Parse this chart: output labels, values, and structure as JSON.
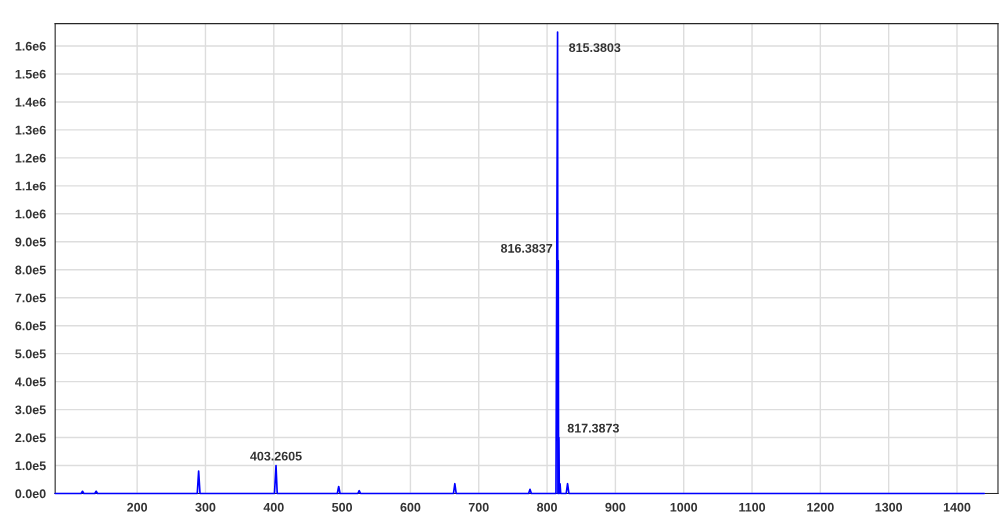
{
  "chart_data": {
    "type": "line",
    "x": [
      80,
      118,
      120,
      122,
      138,
      140,
      142,
      288,
      290,
      292,
      401,
      403.2605,
      405,
      493,
      495,
      497,
      523,
      525,
      527,
      663,
      665,
      667,
      773,
      775,
      777,
      813,
      815.3803,
      815.88,
      816.3837,
      816.88,
      817.3873,
      817.9,
      819,
      820,
      828,
      830,
      832,
      1440
    ],
    "series": [
      {
        "color": "#0000ff",
        "values": [
          0,
          0,
          8000,
          0,
          0,
          8000,
          0,
          0,
          80000,
          0,
          0,
          100000,
          0,
          0,
          25000,
          0,
          0,
          10000,
          0,
          0,
          35000,
          0,
          0,
          15000,
          0,
          0,
          1650000,
          0,
          833000,
          0,
          200000,
          0,
          35000,
          0,
          0,
          35000,
          0,
          0
        ]
      }
    ],
    "xlim": [
      80,
      1460
    ],
    "xticks": [
      200,
      300,
      400,
      500,
      600,
      700,
      800,
      900,
      1000,
      1100,
      1200,
      1300,
      1400
    ],
    "ylim": [
      0,
      1680000
    ],
    "yticks": [
      {
        "value": 0,
        "label": "0.0e0"
      },
      {
        "value": 100000,
        "label": "1.0e5"
      },
      {
        "value": 200000,
        "label": "2.0e5"
      },
      {
        "value": 300000,
        "label": "3.0e5"
      },
      {
        "value": 400000,
        "label": "4.0e5"
      },
      {
        "value": 500000,
        "label": "5.0e5"
      },
      {
        "value": 600000,
        "label": "6.0e5"
      },
      {
        "value": 700000,
        "label": "7.0e5"
      },
      {
        "value": 800000,
        "label": "8.0e5"
      },
      {
        "value": 900000,
        "label": "9.0e5"
      },
      {
        "value": 1000000,
        "label": "1.0e6"
      },
      {
        "value": 1100000,
        "label": "1.1e6"
      },
      {
        "value": 1200000,
        "label": "1.2e6"
      },
      {
        "value": 1300000,
        "label": "1.3e6"
      },
      {
        "value": 1400000,
        "label": "1.4e6"
      },
      {
        "value": 1500000,
        "label": "1.5e6"
      },
      {
        "value": 1600000,
        "label": "1.6e6"
      }
    ],
    "grid": true,
    "annotations": [
      {
        "text": "815.3803",
        "x": 815.3803,
        "y": 1650000
      },
      {
        "text": "816.3837",
        "x": 816.3837,
        "y": 833000
      },
      {
        "text": "817.3873",
        "x": 817.3873,
        "y": 200000
      },
      {
        "text": "403.2605",
        "x": 403.2605,
        "y": 100000
      }
    ]
  }
}
